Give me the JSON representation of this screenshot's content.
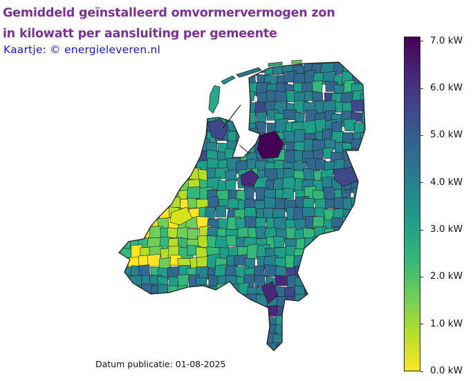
{
  "title": {
    "line1": "Gemiddeld geïnstalleerd omvormervermogen zon",
    "line2": "in kilowatt per aansluiting per gemeente"
  },
  "credit": "Kaartje: © energieleveren.nl",
  "footer": "Datum publicatie: 01-08-2025",
  "legend": {
    "min": 0.0,
    "max": 7.1,
    "ticks": [
      {
        "value": 0,
        "label": "0.0 kW"
      },
      {
        "value": 1,
        "label": "1.0 kW"
      },
      {
        "value": 2,
        "label": "2.0 kW"
      },
      {
        "value": 3,
        "label": "3.0 kW"
      },
      {
        "value": 4,
        "label": "4.0 kW"
      },
      {
        "value": 5,
        "label": "5.0 kW"
      },
      {
        "value": 6,
        "label": "6.0 kW"
      },
      {
        "value": 7,
        "label": "7.0 kW"
      }
    ],
    "colormap": "viridis",
    "colors": [
      "#fde725",
      "#b5de2b",
      "#6ece58",
      "#35b779",
      "#1f9e89",
      "#26828e",
      "#31688e",
      "#3e4989",
      "#482878",
      "#440154"
    ]
  }
}
